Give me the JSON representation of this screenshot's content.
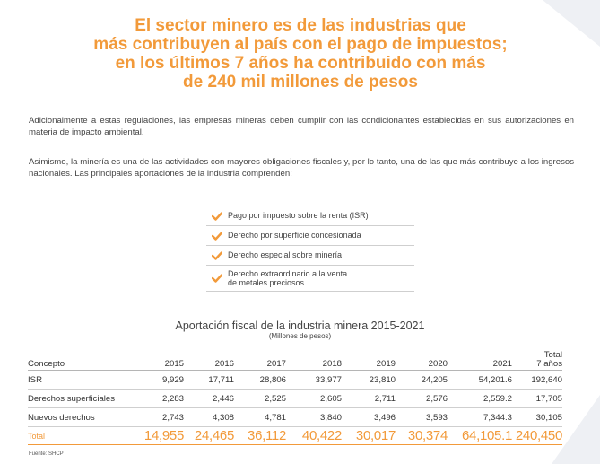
{
  "colors": {
    "accent": "#f29a3a",
    "text": "#333333",
    "decoration": "#eef0f4"
  },
  "headline": [
    "El sector minero es de las industrias que",
    "más contribuyen al país con el pago de impuestos;",
    "en los últimos 7 años ha contribuido con más",
    "de 240 mil millones de pesos"
  ],
  "paragraphs": [
    "Adicionalmente a estas regulaciones, las empresas mineras deben cumplir con las condicionantes establecidas en sus autorizaciones en materia de impacto ambiental.",
    "Asimismo, la minería es una de las actividades con mayores obligaciones fiscales y, por lo tanto, una de las que más contribuye a los ingresos nacionales. Las principales aportaciones de la industria comprenden:"
  ],
  "checklist": {
    "icon": "checkmark-icon",
    "items": [
      "Pago por impuesto sobre la renta (ISR)",
      "Derecho por superficie concesionada",
      "Derecho especial sobre minería",
      "Derecho extraordinario a la venta\nde metales preciosos"
    ]
  },
  "table": {
    "title": "Aportación fiscal de la industria minera 2015-2021",
    "subtitle": "(Millones de pesos)",
    "headers": [
      "Concepto",
      "2015",
      "2016",
      "2017",
      "2018",
      "2019",
      "2020",
      "2021",
      "Total\n7 años"
    ],
    "rows": [
      [
        "ISR",
        "9,929",
        "17,711",
        "28,806",
        "33,977",
        "23,810",
        "24,205",
        "54,201.6",
        "192,640"
      ],
      [
        "Derechos superficiales",
        "2,283",
        "2,446",
        "2,525",
        "2,605",
        "2,711",
        "2,576",
        "2,559.2",
        "17,705"
      ],
      [
        "Nuevos derechos",
        "2,743",
        "4,308",
        "4,781",
        "3,840",
        "3,496",
        "3,593",
        "7,344.3",
        "30,105"
      ]
    ],
    "total": [
      "Total",
      "14,955",
      "24,465",
      "36,112",
      "40,422",
      "30,017",
      "30,374",
      "64,105.1",
      "240,450"
    ]
  },
  "source": "Fuente: SHCP"
}
